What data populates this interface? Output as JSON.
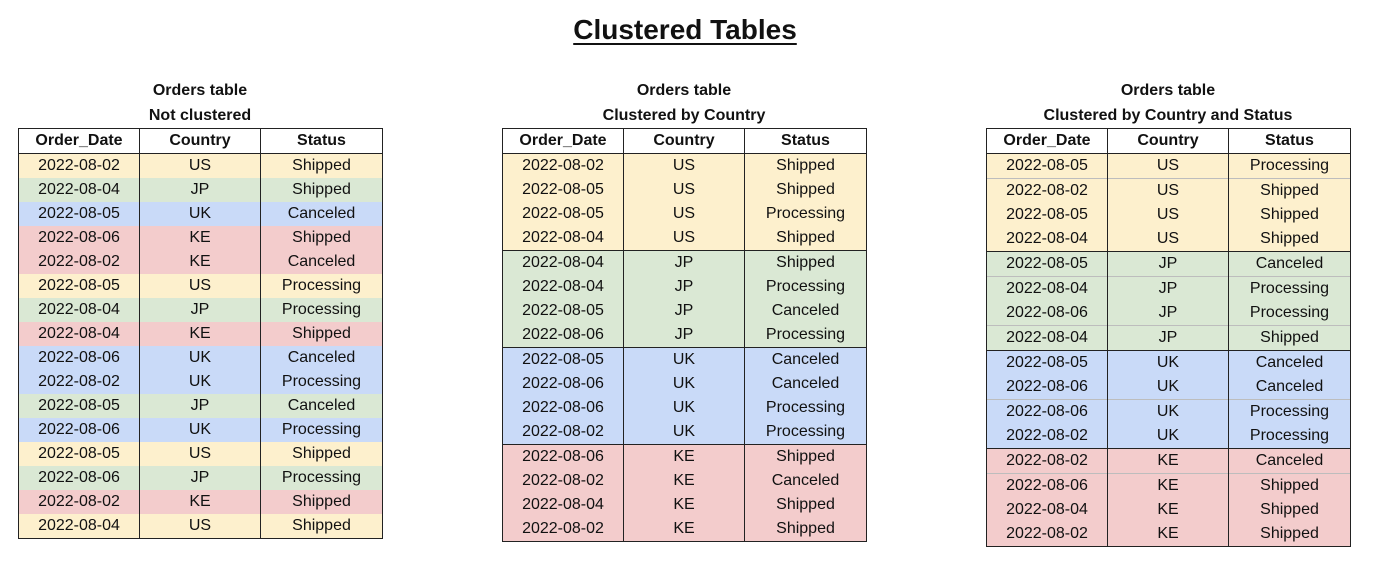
{
  "title": "Clustered Tables",
  "colors": {
    "US": "#fdf0cd",
    "JP": "#dae8d4",
    "UK": "#c9daf8",
    "KE": "#f3cccc"
  },
  "columns": [
    "Order_Date",
    "Country",
    "Status"
  ],
  "tables": [
    {
      "caption_line1": "Orders table",
      "caption_line2": "Not clustered",
      "rows": [
        [
          "2022-08-02",
          "US",
          "Shipped"
        ],
        [
          "2022-08-04",
          "JP",
          "Shipped"
        ],
        [
          "2022-08-05",
          "UK",
          "Canceled"
        ],
        [
          "2022-08-06",
          "KE",
          "Shipped"
        ],
        [
          "2022-08-02",
          "KE",
          "Canceled"
        ],
        [
          "2022-08-05",
          "US",
          "Processing"
        ],
        [
          "2022-08-04",
          "JP",
          "Processing"
        ],
        [
          "2022-08-04",
          "KE",
          "Shipped"
        ],
        [
          "2022-08-06",
          "UK",
          "Canceled"
        ],
        [
          "2022-08-02",
          "UK",
          "Processing"
        ],
        [
          "2022-08-05",
          "JP",
          "Canceled"
        ],
        [
          "2022-08-06",
          "UK",
          "Processing"
        ],
        [
          "2022-08-05",
          "US",
          "Shipped"
        ],
        [
          "2022-08-06",
          "JP",
          "Processing"
        ],
        [
          "2022-08-02",
          "KE",
          "Shipped"
        ],
        [
          "2022-08-04",
          "US",
          "Shipped"
        ]
      ]
    },
    {
      "caption_line1": "Orders table",
      "caption_line2": "Clustered by Country",
      "rows": [
        [
          "2022-08-02",
          "US",
          "Shipped"
        ],
        [
          "2022-08-05",
          "US",
          "Shipped"
        ],
        [
          "2022-08-05",
          "US",
          "Processing"
        ],
        [
          "2022-08-04",
          "US",
          "Shipped"
        ],
        [
          "2022-08-04",
          "JP",
          "Shipped"
        ],
        [
          "2022-08-04",
          "JP",
          "Processing"
        ],
        [
          "2022-08-05",
          "JP",
          "Canceled"
        ],
        [
          "2022-08-06",
          "JP",
          "Processing"
        ],
        [
          "2022-08-05",
          "UK",
          "Canceled"
        ],
        [
          "2022-08-06",
          "UK",
          "Canceled"
        ],
        [
          "2022-08-06",
          "UK",
          "Processing"
        ],
        [
          "2022-08-02",
          "UK",
          "Processing"
        ],
        [
          "2022-08-06",
          "KE",
          "Shipped"
        ],
        [
          "2022-08-02",
          "KE",
          "Canceled"
        ],
        [
          "2022-08-04",
          "KE",
          "Shipped"
        ],
        [
          "2022-08-02",
          "KE",
          "Shipped"
        ]
      ]
    },
    {
      "caption_line1": "Orders table",
      "caption_line2": "Clustered by Country and Status",
      "rows": [
        [
          "2022-08-05",
          "US",
          "Processing"
        ],
        [
          "2022-08-02",
          "US",
          "Shipped"
        ],
        [
          "2022-08-05",
          "US",
          "Shipped"
        ],
        [
          "2022-08-04",
          "US",
          "Shipped"
        ],
        [
          "2022-08-05",
          "JP",
          "Canceled"
        ],
        [
          "2022-08-04",
          "JP",
          "Processing"
        ],
        [
          "2022-08-06",
          "JP",
          "Processing"
        ],
        [
          "2022-08-04",
          "JP",
          "Shipped"
        ],
        [
          "2022-08-05",
          "UK",
          "Canceled"
        ],
        [
          "2022-08-06",
          "UK",
          "Canceled"
        ],
        [
          "2022-08-06",
          "UK",
          "Processing"
        ],
        [
          "2022-08-02",
          "UK",
          "Processing"
        ],
        [
          "2022-08-02",
          "KE",
          "Canceled"
        ],
        [
          "2022-08-06",
          "KE",
          "Shipped"
        ],
        [
          "2022-08-04",
          "KE",
          "Shipped"
        ],
        [
          "2022-08-02",
          "KE",
          "Shipped"
        ]
      ]
    }
  ]
}
